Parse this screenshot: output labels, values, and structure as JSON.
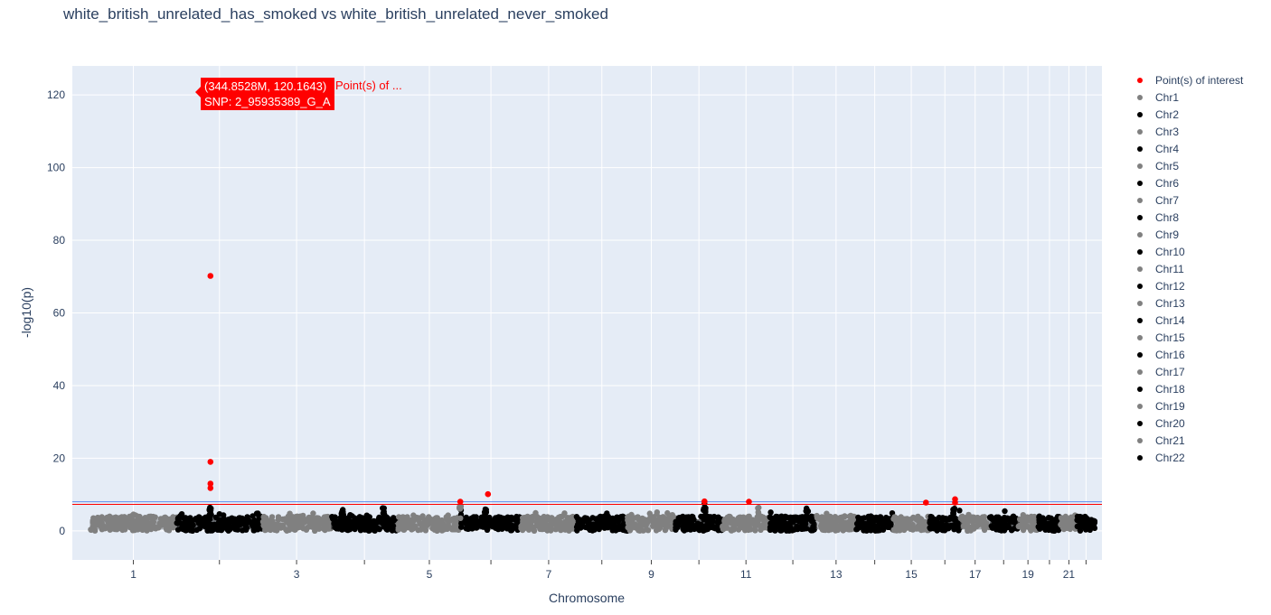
{
  "chart_data": {
    "type": "scatter",
    "title": "white_british_unrelated_has_smoked vs white_british_unrelated_never_smoked",
    "xlabel": "Chromosome",
    "ylabel": "-log10(p)",
    "ylim": [
      -8,
      128
    ],
    "yticks": [
      0,
      20,
      40,
      60,
      80,
      100,
      120
    ],
    "grid": true,
    "legend_position": "right",
    "chromosomes": [
      {
        "name": "1",
        "len_mb": 249,
        "color": "#808080"
      },
      {
        "name": "2",
        "len_mb": 243,
        "color": "#000000"
      },
      {
        "name": "3",
        "len_mb": 198,
        "color": "#808080"
      },
      {
        "name": "4",
        "len_mb": 190,
        "color": "#000000"
      },
      {
        "name": "5",
        "len_mb": 181,
        "color": "#808080"
      },
      {
        "name": "6",
        "len_mb": 171,
        "color": "#000000"
      },
      {
        "name": "7",
        "len_mb": 159,
        "color": "#808080"
      },
      {
        "name": "8",
        "len_mb": 145,
        "color": "#000000"
      },
      {
        "name": "9",
        "len_mb": 138,
        "color": "#808080"
      },
      {
        "name": "10",
        "len_mb": 134,
        "color": "#000000"
      },
      {
        "name": "11",
        "len_mb": 135,
        "color": "#808080"
      },
      {
        "name": "12",
        "len_mb": 133,
        "color": "#000000"
      },
      {
        "name": "13",
        "len_mb": 114,
        "color": "#808080"
      },
      {
        "name": "14",
        "len_mb": 107,
        "color": "#000000"
      },
      {
        "name": "15",
        "len_mb": 102,
        "color": "#808080"
      },
      {
        "name": "16",
        "len_mb": 90,
        "color": "#000000"
      },
      {
        "name": "17",
        "len_mb": 83,
        "color": "#808080"
      },
      {
        "name": "18",
        "len_mb": 80,
        "color": "#000000"
      },
      {
        "name": "19",
        "len_mb": 59,
        "color": "#808080"
      },
      {
        "name": "20",
        "len_mb": 64,
        "color": "#000000"
      },
      {
        "name": "21",
        "len_mb": 47,
        "color": "#808080"
      },
      {
        "name": "22",
        "len_mb": 51,
        "color": "#000000"
      }
    ],
    "tick_labels": [
      "1",
      "",
      "3",
      "",
      "5",
      "",
      "7",
      "",
      "9",
      "",
      "11",
      "",
      "13",
      "",
      "15",
      "",
      "17",
      "",
      "19",
      "",
      "21",
      ""
    ],
    "threshold_lines": [
      {
        "y": 7.3,
        "color": "#ff0000"
      },
      {
        "y": 8.0,
        "color": "#5b8def"
      }
    ],
    "points_of_interest": [
      {
        "x_mb": 344.85,
        "y": 120.1643
      },
      {
        "x_mb": 344.9,
        "y": 117.3
      },
      {
        "x_mb": 344.9,
        "y": 70.2
      },
      {
        "x_mb": 344.9,
        "y": 19.0
      },
      {
        "x_mb": 344.9,
        "y": 13.0
      },
      {
        "x_mb": 344.9,
        "y": 11.8
      },
      {
        "x_mb": 1059,
        "y": 8.0
      },
      {
        "x_mb": 1138,
        "y": 10.1
      },
      {
        "x_mb": 1757,
        "y": 8.1
      },
      {
        "x_mb": 1884,
        "y": 8.0
      },
      {
        "x_mb": 2390,
        "y": 7.8
      },
      {
        "x_mb": 2473,
        "y": 8.7
      },
      {
        "x_mb": 2473,
        "y": 7.8
      }
    ],
    "peaks": [
      {
        "x_mb": 344,
        "y": 6.5
      },
      {
        "x_mb": 722,
        "y": 6.2
      },
      {
        "x_mb": 840,
        "y": 7.2
      },
      {
        "x_mb": 1059,
        "y": 6.8
      },
      {
        "x_mb": 1130,
        "y": 6.0
      },
      {
        "x_mb": 1757,
        "y": 7.5
      },
      {
        "x_mb": 1910,
        "y": 6.6
      },
      {
        "x_mb": 2050,
        "y": 6.3
      },
      {
        "x_mb": 2470,
        "y": 6.4
      }
    ]
  },
  "hover": {
    "coords": "(344.8528M, 120.1643)",
    "snp": "SNP: 2_95935389_G_A",
    "series_name": "Point(s) of ..."
  },
  "legend": [
    {
      "label": "Point(s) of interest",
      "color": "#ff0000"
    },
    {
      "label": "Chr1",
      "color": "#808080"
    },
    {
      "label": "Chr2",
      "color": "#000000"
    },
    {
      "label": "Chr3",
      "color": "#808080"
    },
    {
      "label": "Chr4",
      "color": "#000000"
    },
    {
      "label": "Chr5",
      "color": "#808080"
    },
    {
      "label": "Chr6",
      "color": "#000000"
    },
    {
      "label": "Chr7",
      "color": "#808080"
    },
    {
      "label": "Chr8",
      "color": "#000000"
    },
    {
      "label": "Chr9",
      "color": "#808080"
    },
    {
      "label": "Chr10",
      "color": "#000000"
    },
    {
      "label": "Chr11",
      "color": "#808080"
    },
    {
      "label": "Chr12",
      "color": "#000000"
    },
    {
      "label": "Chr13",
      "color": "#808080"
    },
    {
      "label": "Chr14",
      "color": "#000000"
    },
    {
      "label": "Chr15",
      "color": "#808080"
    },
    {
      "label": "Chr16",
      "color": "#000000"
    },
    {
      "label": "Chr17",
      "color": "#808080"
    },
    {
      "label": "Chr18",
      "color": "#000000"
    },
    {
      "label": "Chr19",
      "color": "#808080"
    },
    {
      "label": "Chr20",
      "color": "#000000"
    },
    {
      "label": "Chr21",
      "color": "#808080"
    },
    {
      "label": "Chr22",
      "color": "#000000"
    }
  ]
}
